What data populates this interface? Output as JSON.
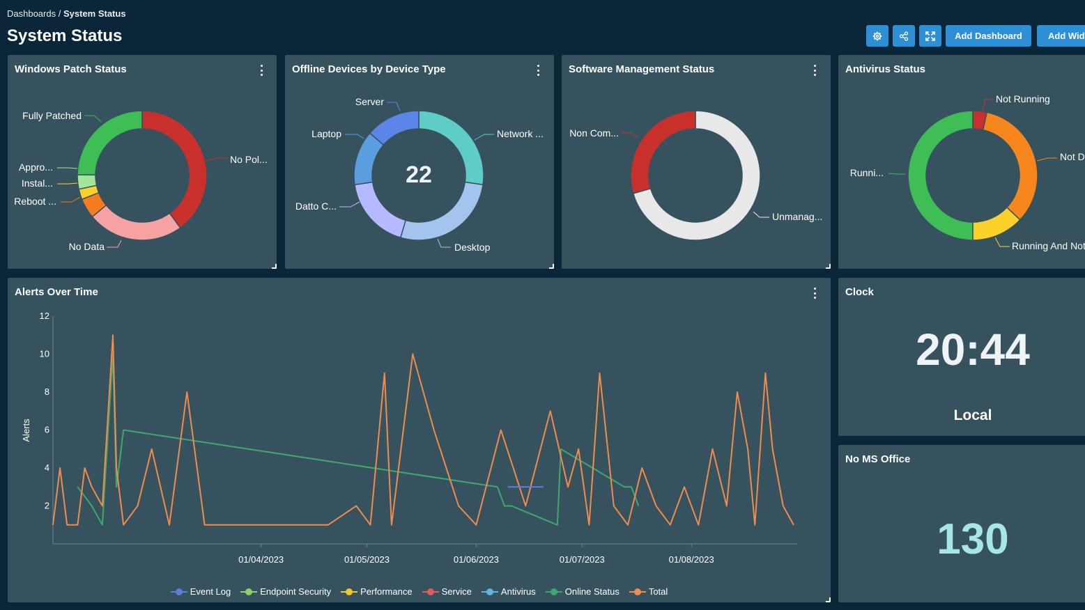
{
  "breadcrumb": {
    "parent": "Dashboards",
    "separator": " / ",
    "current": "System Status"
  },
  "page_title": "System Status",
  "toolbar": {
    "settings_icon": "gear-icon",
    "share_icon": "share-icon",
    "fullscreen_icon": "expand-icon",
    "add_dashboard": "Add Dashboard",
    "add_widget": "Add Widg"
  },
  "colors": {
    "background": "#0b2638",
    "panel": "#36525f",
    "button": "#2d8fd5"
  },
  "widgets": {
    "patch": {
      "title": "Windows Patch Status",
      "labels": {
        "fully_patched": "Fully Patched",
        "no_policy": "No Pol...",
        "approved": "Appro...",
        "installing": "Instal...",
        "reboot": "Reboot ...",
        "no_data": "No Data"
      }
    },
    "offline": {
      "title": "Offline Devices by Device Type",
      "center_value": "22",
      "labels": {
        "server": "Server",
        "laptop": "Laptop",
        "network": "Network ...",
        "datto": "Datto C...",
        "desktop": "Desktop"
      }
    },
    "software": {
      "title": "Software Management Status",
      "labels": {
        "non_compliant": "Non Com...",
        "unmanaged": "Unmanag..."
      }
    },
    "antivirus": {
      "title": "Antivirus Status",
      "labels": {
        "not_running": "Not Running",
        "not_d": "Not D",
        "running": "Runni...",
        "running_and_not": "Running And Not"
      }
    },
    "alerts": {
      "title": "Alerts Over Time"
    },
    "clock": {
      "title": "Clock",
      "time": "20:44",
      "zone": "Local"
    },
    "no_office": {
      "title": "No MS Office",
      "value": "130"
    }
  },
  "chart_data": [
    {
      "type": "pie",
      "title": "Windows Patch Status",
      "donut": true,
      "labels": [
        "No Pol...",
        "No Data",
        "Reboot ...",
        "Instal...",
        "Appro...",
        "Fully Patched"
      ],
      "values": [
        40,
        24,
        5,
        2.6,
        3.6,
        24.8
      ],
      "colors": [
        "#c8302c",
        "#f6a2a3",
        "#f57c1f",
        "#fcd12a",
        "#a5e59b",
        "#3fbe56"
      ]
    },
    {
      "type": "pie",
      "title": "Offline Devices by Device Type",
      "donut": true,
      "labels": [
        "Network ...",
        "Desktop",
        "Datto C...",
        "Laptop",
        "Server"
      ],
      "values": [
        6,
        6,
        4,
        3,
        3
      ],
      "colors": [
        "#5fcdc7",
        "#a3c4ec",
        "#b7b9ff",
        "#5a9ee0",
        "#5b85e6"
      ]
    },
    {
      "type": "pie",
      "title": "Software Management Status",
      "donut": true,
      "labels": [
        "Unmanag...",
        "Non Com..."
      ],
      "values": [
        70.5,
        29.5
      ],
      "colors": [
        "#e8e8e8",
        "#c8302c"
      ]
    },
    {
      "type": "pie",
      "title": "Antivirus Status",
      "donut": true,
      "labels": [
        "Not Running",
        "Not D",
        "Running And Not",
        "Runni..."
      ],
      "values": [
        3.5,
        33.5,
        13,
        50
      ],
      "colors": [
        "#c8302c",
        "#f7861c",
        "#fcd12a",
        "#3fbe56"
      ]
    },
    {
      "type": "line",
      "title": "Alerts Over Time",
      "ylabel": "Alerts",
      "ylim": [
        0,
        12
      ],
      "yticks": [
        2,
        4,
        6,
        8,
        10,
        12
      ],
      "xlim": [
        "2023-02-01",
        "2023-08-31"
      ],
      "xticks": [
        "01/04/2023",
        "01/05/2023",
        "01/06/2023",
        "01/07/2023",
        "01/08/2023"
      ],
      "legend_position": "bottom",
      "series": [
        {
          "name": "Event Log",
          "color": "#5b7fdb",
          "x": [
            "2023-06-10",
            "2023-06-20"
          ],
          "values": [
            3,
            3
          ]
        },
        {
          "name": "Endpoint Security",
          "color": "#8fd067",
          "x": [],
          "values": []
        },
        {
          "name": "Performance",
          "color": "#f3c62d",
          "x": [],
          "values": []
        },
        {
          "name": "Service",
          "color": "#e85a5a",
          "x": [],
          "values": []
        },
        {
          "name": "Antivirus",
          "color": "#5fb4e6",
          "x": [],
          "values": []
        },
        {
          "name": "Online Status",
          "color": "#3fa86a",
          "x": [
            "2023-02-08",
            "2023-02-12",
            "2023-02-15",
            "2023-02-18",
            "2023-02-19",
            "2023-02-21",
            "2023-06-07",
            "2023-06-09",
            "2023-06-11",
            "2023-06-24",
            "2023-06-25",
            "2023-07-13",
            "2023-07-15",
            "2023-07-17"
          ],
          "values": [
            3,
            2,
            1,
            10,
            3,
            6,
            3,
            2,
            2,
            1,
            5,
            3,
            3,
            2
          ]
        },
        {
          "name": "Total",
          "color": "#f28b4b",
          "x": [
            "2023-02-01",
            "2023-02-03",
            "2023-02-05",
            "2023-02-08",
            "2023-02-10",
            "2023-02-12",
            "2023-02-15",
            "2023-02-18",
            "2023-02-19",
            "2023-02-21",
            "2023-02-25",
            "2023-03-01",
            "2023-03-06",
            "2023-03-11",
            "2023-03-16",
            "2023-03-21",
            "2023-04-05",
            "2023-04-20",
            "2023-04-28",
            "2023-05-02",
            "2023-05-06",
            "2023-05-08",
            "2023-05-14",
            "2023-05-20",
            "2023-05-27",
            "2023-06-01",
            "2023-06-08",
            "2023-06-15",
            "2023-06-22",
            "2023-06-27",
            "2023-06-30",
            "2023-07-03",
            "2023-07-06",
            "2023-07-10",
            "2023-07-14",
            "2023-07-18",
            "2023-07-22",
            "2023-07-26",
            "2023-07-30",
            "2023-08-03",
            "2023-08-07",
            "2023-08-11",
            "2023-08-14",
            "2023-08-17",
            "2023-08-19",
            "2023-08-22",
            "2023-08-24",
            "2023-08-27",
            "2023-08-30"
          ],
          "values": [
            1,
            4,
            1,
            1,
            4,
            3,
            2,
            11,
            4,
            1,
            2,
            5,
            1,
            8,
            1,
            1,
            1,
            1,
            2,
            1,
            9,
            1,
            10,
            6,
            2,
            1,
            6,
            2,
            7,
            3,
            5,
            1,
            9,
            2,
            1,
            4,
            2,
            1,
            3,
            1,
            5,
            2,
            8,
            5,
            1,
            9,
            5,
            2,
            1
          ]
        }
      ]
    }
  ]
}
